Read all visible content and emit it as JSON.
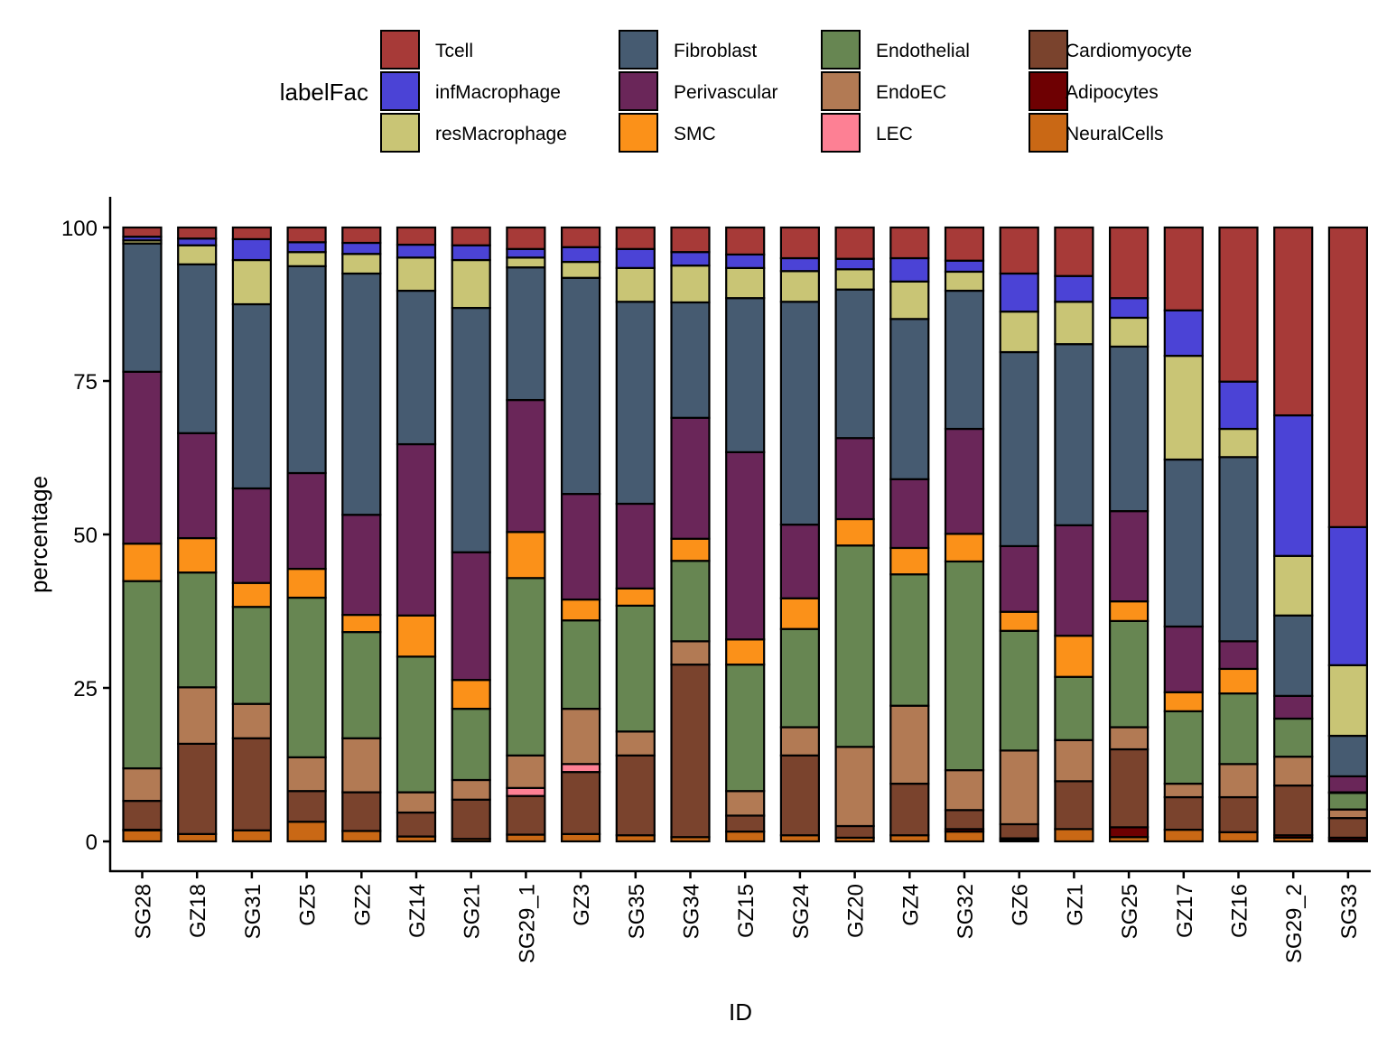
{
  "chart_data": {
    "type": "bar",
    "stacked": true,
    "title": "",
    "xlabel": "ID",
    "ylabel": "percentage",
    "ylim": [
      0,
      100
    ],
    "yticks": [
      0,
      25,
      50,
      75,
      100
    ],
    "grid": false,
    "legend": {
      "title": "labelFac",
      "placement": "top",
      "entries": [
        {
          "name": "Tcell",
          "color": "#A73A38"
        },
        {
          "name": "infMacrophage",
          "color": "#4B43D6"
        },
        {
          "name": "resMacrophage",
          "color": "#C9C575"
        },
        {
          "name": "Fibroblast",
          "color": "#465B71"
        },
        {
          "name": "Perivascular",
          "color": "#6A2659"
        },
        {
          "name": "SMC",
          "color": "#FB9119"
        },
        {
          "name": "Endothelial",
          "color": "#678652"
        },
        {
          "name": "EndoEC",
          "color": "#B27A54"
        },
        {
          "name": "LEC",
          "color": "#FD8094"
        },
        {
          "name": "Cardiomyocyte",
          "color": "#7A432D"
        },
        {
          "name": "Adipocytes",
          "color": "#6E0002"
        },
        {
          "name": "NeuralCells",
          "color": "#C96815"
        }
      ]
    },
    "stack_order_bottom_to_top": [
      "NeuralCells",
      "Adipocytes",
      "Cardiomyocyte",
      "LEC",
      "EndoEC",
      "Endothelial",
      "SMC",
      "Perivascular",
      "Fibroblast",
      "resMacrophage",
      "infMacrophage",
      "Tcell"
    ],
    "categories": [
      "SG28",
      "GZ18",
      "SG31",
      "GZ5",
      "GZ2",
      "GZ14",
      "SG21",
      "SG29_1",
      "GZ3",
      "SG35",
      "SG34",
      "GZ15",
      "SG24",
      "GZ20",
      "GZ4",
      "SG32",
      "GZ6",
      "GZ1",
      "SG25",
      "GZ17",
      "GZ16",
      "SG29_2",
      "SG33"
    ],
    "series": [
      {
        "name": "NeuralCells",
        "values": [
          1.8,
          1.2,
          1.8,
          3.2,
          1.7,
          0.8,
          0.4,
          1.1,
          1.2,
          1.0,
          0.7,
          1.6,
          1.0,
          0.6,
          1.0,
          1.6,
          0.2,
          2.0,
          0.7,
          1.9,
          1.5,
          0.6,
          0.2
        ]
      },
      {
        "name": "Adipocytes",
        "values": [
          0.1,
          0.0,
          0.0,
          0.0,
          0.0,
          0.0,
          0.0,
          0.0,
          0.0,
          0.0,
          0.0,
          0.0,
          0.0,
          0.0,
          0.0,
          0.4,
          0.3,
          0.0,
          1.6,
          0.0,
          0.0,
          0.4,
          0.4
        ]
      },
      {
        "name": "Cardiomyocyte",
        "values": [
          4.7,
          14.7,
          15.0,
          5.0,
          6.3,
          3.9,
          6.4,
          6.3,
          10.1,
          13.0,
          28.1,
          2.6,
          13.0,
          1.9,
          8.4,
          3.1,
          2.3,
          7.8,
          12.7,
          5.3,
          5.7,
          8.1,
          3.2
        ]
      },
      {
        "name": "LEC",
        "values": [
          0.0,
          0.0,
          0.0,
          0.0,
          0.0,
          0.0,
          0.0,
          1.3,
          1.3,
          0.0,
          0.0,
          0.0,
          0.0,
          0.0,
          0.0,
          0.0,
          0.0,
          0.0,
          0.0,
          0.0,
          0.0,
          0.0,
          0.0
        ]
      },
      {
        "name": "EndoEC",
        "values": [
          5.3,
          9.2,
          5.6,
          5.5,
          8.8,
          3.3,
          3.2,
          5.3,
          9.0,
          3.9,
          3.8,
          4.0,
          4.6,
          12.9,
          12.7,
          6.5,
          12.0,
          6.7,
          3.6,
          2.2,
          5.4,
          4.7,
          1.4
        ]
      },
      {
        "name": "Endothelial",
        "values": [
          30.5,
          18.7,
          15.8,
          26.0,
          17.3,
          22.1,
          11.6,
          28.9,
          14.4,
          20.5,
          13.1,
          20.6,
          16.0,
          32.8,
          21.4,
          34.0,
          19.5,
          10.3,
          17.3,
          11.8,
          11.5,
          6.2,
          2.7
        ]
      },
      {
        "name": "SMC",
        "values": [
          6.1,
          5.6,
          3.9,
          4.7,
          2.8,
          6.7,
          4.7,
          7.5,
          3.4,
          2.8,
          3.6,
          4.1,
          5.0,
          4.3,
          4.3,
          4.5,
          3.1,
          6.7,
          3.2,
          3.1,
          4.0,
          0.0,
          0.1
        ]
      },
      {
        "name": "Perivascular",
        "values": [
          28.0,
          17.1,
          15.4,
          15.6,
          16.3,
          27.9,
          20.8,
          21.5,
          17.2,
          13.8,
          19.7,
          30.5,
          12.0,
          13.2,
          11.2,
          17.1,
          10.7,
          18.0,
          14.7,
          10.7,
          4.5,
          3.7,
          2.6
        ]
      },
      {
        "name": "Fibroblast",
        "values": [
          20.9,
          27.5,
          30.0,
          33.7,
          39.3,
          25.0,
          39.8,
          21.6,
          35.2,
          32.9,
          18.8,
          25.1,
          36.3,
          24.2,
          26.1,
          22.5,
          31.6,
          29.5,
          26.8,
          27.2,
          30.0,
          13.1,
          6.6
        ]
      },
      {
        "name": "resMacrophage",
        "values": [
          0.5,
          3.1,
          7.2,
          2.3,
          3.2,
          5.4,
          7.8,
          1.6,
          2.6,
          5.5,
          6.0,
          4.9,
          5.0,
          3.3,
          6.1,
          3.1,
          6.6,
          6.9,
          4.7,
          16.9,
          4.6,
          9.7,
          11.5
        ]
      },
      {
        "name": "infMacrophage",
        "values": [
          0.6,
          1.1,
          3.4,
          1.6,
          1.8,
          2.1,
          2.4,
          1.4,
          2.4,
          3.1,
          2.2,
          2.2,
          2.1,
          1.7,
          3.8,
          1.8,
          6.2,
          4.2,
          3.2,
          7.4,
          7.7,
          22.9,
          22.5
        ]
      },
      {
        "name": "Tcell",
        "values": [
          1.5,
          1.8,
          1.9,
          2.4,
          2.5,
          2.8,
          2.9,
          3.5,
          3.2,
          3.5,
          4.0,
          4.4,
          5.0,
          5.1,
          5.0,
          5.4,
          7.5,
          7.9,
          11.5,
          13.5,
          25.1,
          30.6,
          48.8
        ]
      }
    ]
  }
}
